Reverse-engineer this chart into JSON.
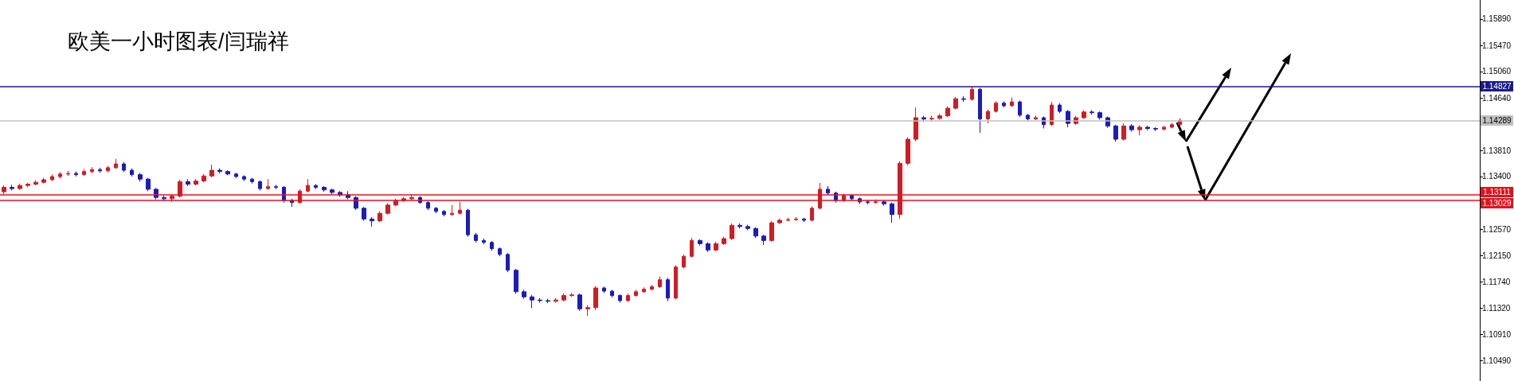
{
  "chart_data": {
    "type": "candlestick",
    "title": "欧美一小时图表/闫瑞祥",
    "categories": [
      null,
      null,
      null,
      null,
      null,
      null,
      null,
      null,
      null,
      null,
      null,
      null,
      null,
      null,
      null,
      null,
      null,
      null,
      null,
      null,
      null,
      null,
      null,
      null,
      null,
      null,
      null,
      null,
      null,
      null,
      null,
      null,
      null,
      null,
      null,
      null,
      null,
      null,
      null,
      null,
      null,
      null,
      null,
      null,
      null,
      null,
      null,
      null,
      null,
      null,
      null,
      null,
      null,
      null,
      null,
      null,
      null,
      null,
      null,
      null,
      null,
      null,
      null,
      null,
      null,
      null,
      null,
      null,
      null,
      null,
      null,
      null,
      null,
      null,
      null,
      null,
      null,
      null,
      null,
      null,
      null,
      null,
      null,
      null,
      null,
      null,
      null,
      null,
      null,
      null,
      null,
      null,
      null,
      null,
      null,
      null,
      null,
      null,
      null,
      null,
      null,
      null,
      null,
      null,
      null,
      null,
      null,
      null,
      null,
      null,
      null,
      null,
      null,
      null,
      null,
      null,
      null,
      null,
      null,
      null,
      null,
      null,
      null,
      null,
      null,
      null,
      null,
      null,
      null,
      null,
      null,
      null,
      null,
      null,
      null,
      null,
      null,
      null,
      null,
      null,
      null,
      null,
      null,
      null,
      null,
      null,
      null,
      null,
      null,
      null,
      null,
      null,
      null,
      null,
      null,
      null,
      null,
      null,
      null,
      null,
      null,
      null,
      null,
      null,
      null,
      null,
      null,
      null,
      null,
      null,
      null,
      null,
      null,
      null,
      null,
      null,
      null,
      null,
      null,
      null,
      null,
      null,
      null,
      null,
      null
    ],
    "ohlc": [
      [
        1.1316,
        1.1326,
        1.1312,
        1.1323
      ],
      [
        1.1323,
        1.1327,
        1.1318,
        1.1321
      ],
      [
        1.1321,
        1.1329,
        1.1319,
        1.1326
      ],
      [
        1.1326,
        1.133,
        1.1323,
        1.1328
      ],
      [
        1.1328,
        1.1334,
        1.1326,
        1.1331
      ],
      [
        1.1331,
        1.1338,
        1.1329,
        1.1335
      ],
      [
        1.1335,
        1.1343,
        1.1333,
        1.134
      ],
      [
        1.134,
        1.1347,
        1.1337,
        1.1344
      ],
      [
        1.1344,
        1.1349,
        1.1341,
        1.1345
      ],
      [
        1.1345,
        1.1348,
        1.134,
        1.1343
      ],
      [
        1.1343,
        1.1352,
        1.1341,
        1.1348
      ],
      [
        1.1348,
        1.1355,
        1.1345,
        1.1351
      ],
      [
        1.1351,
        1.1354,
        1.1346,
        1.1349
      ],
      [
        1.1349,
        1.1357,
        1.1347,
        1.1354
      ],
      [
        1.1354,
        1.1368,
        1.1352,
        1.136
      ],
      [
        1.136,
        1.1363,
        1.1347,
        1.135
      ],
      [
        1.135,
        1.1353,
        1.134,
        1.1343
      ],
      [
        1.1343,
        1.1346,
        1.1332,
        1.1336
      ],
      [
        1.1336,
        1.1338,
        1.1317,
        1.132
      ],
      [
        1.132,
        1.1322,
        1.1304,
        1.1307
      ],
      [
        1.1307,
        1.131,
        1.1301,
        1.1305
      ],
      [
        1.1305,
        1.1312,
        1.13,
        1.1309
      ],
      [
        1.1309,
        1.1335,
        1.1307,
        1.1332
      ],
      [
        1.1332,
        1.1336,
        1.1325,
        1.1328
      ],
      [
        1.1328,
        1.1336,
        1.1326,
        1.1333
      ],
      [
        1.1333,
        1.1344,
        1.1331,
        1.1341
      ],
      [
        1.1341,
        1.1359,
        1.1339,
        1.135
      ],
      [
        1.135,
        1.1353,
        1.1345,
        1.1348
      ],
      [
        1.1348,
        1.135,
        1.1342,
        1.1344
      ],
      [
        1.1344,
        1.1346,
        1.1338,
        1.134
      ],
      [
        1.134,
        1.1342,
        1.1333,
        1.1336
      ],
      [
        1.1336,
        1.1338,
        1.1329,
        1.1332
      ],
      [
        1.1332,
        1.1334,
        1.1318,
        1.1321
      ],
      [
        1.1321,
        1.1336,
        1.1319,
        1.1324
      ],
      [
        1.1324,
        1.1327,
        1.132,
        1.1323
      ],
      [
        1.1323,
        1.1325,
        1.1299,
        1.1302
      ],
      [
        1.1302,
        1.1305,
        1.1292,
        1.1299
      ],
      [
        1.1299,
        1.132,
        1.1297,
        1.1317
      ],
      [
        1.1317,
        1.1336,
        1.1315,
        1.1326
      ],
      [
        1.1326,
        1.1328,
        1.132,
        1.1323
      ],
      [
        1.1323,
        1.1325,
        1.1316,
        1.1319
      ],
      [
        1.1319,
        1.1321,
        1.1312,
        1.1315
      ],
      [
        1.1315,
        1.1317,
        1.1308,
        1.1311
      ],
      [
        1.1311,
        1.1317,
        1.1304,
        1.1307
      ],
      [
        1.1307,
        1.1309,
        1.1287,
        1.129
      ],
      [
        1.129,
        1.1292,
        1.127,
        1.1273
      ],
      [
        1.1273,
        1.1276,
        1.1261,
        1.127
      ],
      [
        1.127,
        1.1285,
        1.1268,
        1.1282
      ],
      [
        1.1282,
        1.1298,
        1.128,
        1.1295
      ],
      [
        1.1295,
        1.1305,
        1.1293,
        1.1302
      ],
      [
        1.1302,
        1.1308,
        1.13,
        1.1305
      ],
      [
        1.1305,
        1.1312,
        1.1303,
        1.1307
      ],
      [
        1.1307,
        1.1309,
        1.1297,
        1.1299
      ],
      [
        1.1299,
        1.1301,
        1.1287,
        1.129
      ],
      [
        1.129,
        1.1292,
        1.1282,
        1.1285
      ],
      [
        1.1285,
        1.1287,
        1.1277,
        1.128
      ],
      [
        1.128,
        1.1295,
        1.1278,
        1.1282
      ],
      [
        1.1282,
        1.13,
        1.128,
        1.1287
      ],
      [
        1.1287,
        1.1289,
        1.1245,
        1.1248
      ],
      [
        1.1248,
        1.1251,
        1.1236,
        1.1239
      ],
      [
        1.1239,
        1.1242,
        1.1233,
        1.1236
      ],
      [
        1.1236,
        1.1238,
        1.1223,
        1.1226
      ],
      [
        1.1226,
        1.1228,
        1.1214,
        1.1217
      ],
      [
        1.1217,
        1.1219,
        1.1189,
        1.1192
      ],
      [
        1.1192,
        1.1194,
        1.1155,
        1.1158
      ],
      [
        1.1158,
        1.1161,
        1.1147,
        1.115
      ],
      [
        1.115,
        1.1153,
        1.1132,
        1.1145
      ],
      [
        1.1145,
        1.1148,
        1.1141,
        1.1144
      ],
      [
        1.1144,
        1.1147,
        1.114,
        1.1143
      ],
      [
        1.1143,
        1.1148,
        1.1141,
        1.1145
      ],
      [
        1.1145,
        1.1155,
        1.1143,
        1.1152
      ],
      [
        1.1152,
        1.1156,
        1.115,
        1.1153
      ],
      [
        1.1153,
        1.1155,
        1.1128,
        1.1131
      ],
      [
        1.1131,
        1.1137,
        1.112,
        1.1133
      ],
      [
        1.1133,
        1.1167,
        1.1129,
        1.1164
      ],
      [
        1.1164,
        1.1166,
        1.1156,
        1.1159
      ],
      [
        1.1159,
        1.1161,
        1.1149,
        1.1152
      ],
      [
        1.1152,
        1.1154,
        1.1141,
        1.1144
      ],
      [
        1.1144,
        1.1155,
        1.1142,
        1.1152
      ],
      [
        1.1152,
        1.1161,
        1.115,
        1.1158
      ],
      [
        1.1158,
        1.1165,
        1.1156,
        1.1162
      ],
      [
        1.1162,
        1.1169,
        1.116,
        1.1166
      ],
      [
        1.1166,
        1.1182,
        1.1164,
        1.1177
      ],
      [
        1.1177,
        1.118,
        1.1143,
        1.1148
      ],
      [
        1.1148,
        1.12,
        1.1146,
        1.1197
      ],
      [
        1.1197,
        1.1217,
        1.1195,
        1.1214
      ],
      [
        1.1214,
        1.1243,
        1.1212,
        1.1239
      ],
      [
        1.1239,
        1.1241,
        1.1231,
        1.1234
      ],
      [
        1.1234,
        1.1236,
        1.1221,
        1.1224
      ],
      [
        1.1224,
        1.1237,
        1.1222,
        1.1234
      ],
      [
        1.1234,
        1.1245,
        1.1232,
        1.1242
      ],
      [
        1.1242,
        1.1266,
        1.124,
        1.1263
      ],
      [
        1.1263,
        1.1266,
        1.1258,
        1.1261
      ],
      [
        1.1261,
        1.1264,
        1.1255,
        1.1258
      ],
      [
        1.1258,
        1.126,
        1.1243,
        1.1246
      ],
      [
        1.1246,
        1.1248,
        1.1232,
        1.1239
      ],
      [
        1.1239,
        1.127,
        1.1237,
        1.1267
      ],
      [
        1.1267,
        1.1274,
        1.1265,
        1.1271
      ],
      [
        1.1271,
        1.1275,
        1.1269,
        1.1272
      ],
      [
        1.1272,
        1.1276,
        1.127,
        1.1273
      ],
      [
        1.1273,
        1.1275,
        1.1268,
        1.1271
      ],
      [
        1.1271,
        1.1293,
        1.1269,
        1.129
      ],
      [
        1.129,
        1.133,
        1.1288,
        1.132
      ],
      [
        1.132,
        1.1325,
        1.1311,
        1.1314
      ],
      [
        1.1314,
        1.1316,
        1.1299,
        1.1302
      ],
      [
        1.1302,
        1.1313,
        1.13,
        1.131
      ],
      [
        1.131,
        1.1312,
        1.1302,
        1.1305
      ],
      [
        1.1305,
        1.1307,
        1.1297,
        1.13
      ],
      [
        1.13,
        1.1303,
        1.1296,
        1.1299
      ],
      [
        1.1299,
        1.1304,
        1.1297,
        1.13
      ],
      [
        1.13,
        1.1302,
        1.1294,
        1.1297
      ],
      [
        1.1297,
        1.1299,
        1.1267,
        1.128
      ],
      [
        1.128,
        1.1364,
        1.1273,
        1.1361
      ],
      [
        1.1361,
        1.1402,
        1.1358,
        1.1399
      ],
      [
        1.1399,
        1.1449,
        1.1396,
        1.1433
      ],
      [
        1.1433,
        1.1436,
        1.1427,
        1.1431
      ],
      [
        1.1431,
        1.1436,
        1.1428,
        1.1432
      ],
      [
        1.1432,
        1.1439,
        1.143,
        1.1436
      ],
      [
        1.1436,
        1.1451,
        1.1434,
        1.1448
      ],
      [
        1.1448,
        1.1466,
        1.1446,
        1.1463
      ],
      [
        1.1463,
        1.1467,
        1.1458,
        1.1462
      ],
      [
        1.1462,
        1.1483,
        1.146,
        1.1478
      ],
      [
        1.1478,
        1.148,
        1.1409,
        1.1431
      ],
      [
        1.1431,
        1.1446,
        1.1424,
        1.1443
      ],
      [
        1.1443,
        1.1459,
        1.1441,
        1.1456
      ],
      [
        1.1456,
        1.1459,
        1.1449,
        1.1452
      ],
      [
        1.1452,
        1.1465,
        1.145,
        1.1458
      ],
      [
        1.1458,
        1.146,
        1.1434,
        1.1437
      ],
      [
        1.1437,
        1.1439,
        1.1428,
        1.1431
      ],
      [
        1.1431,
        1.1436,
        1.1429,
        1.1433
      ],
      [
        1.1433,
        1.1435,
        1.1416,
        1.1422
      ],
      [
        1.1422,
        1.1458,
        1.142,
        1.1453
      ],
      [
        1.1453,
        1.1456,
        1.144,
        1.1443
      ],
      [
        1.1443,
        1.1445,
        1.1418,
        1.1424
      ],
      [
        1.1424,
        1.1436,
        1.1422,
        1.1433
      ],
      [
        1.1433,
        1.1445,
        1.1431,
        1.1442
      ],
      [
        1.1442,
        1.1445,
        1.1438,
        1.1441
      ],
      [
        1.1441,
        1.1443,
        1.143,
        1.1433
      ],
      [
        1.1433,
        1.1435,
        1.1417,
        1.142
      ],
      [
        1.142,
        1.1422,
        1.1395,
        1.1399
      ],
      [
        1.1399,
        1.1424,
        1.1397,
        1.142
      ],
      [
        1.142,
        1.1423,
        1.1411,
        1.1414
      ],
      [
        1.1414,
        1.1421,
        1.1405,
        1.1418
      ],
      [
        1.1418,
        1.142,
        1.1413,
        1.1416
      ],
      [
        1.1416,
        1.1418,
        1.1412,
        1.1415
      ],
      [
        1.1415,
        1.142,
        1.1413,
        1.1418
      ],
      [
        1.1418,
        1.1425,
        1.1416,
        1.1422
      ],
      [
        1.1422,
        1.1432,
        1.142,
        1.1429
      ],
      null,
      null,
      null,
      null,
      null,
      null,
      null,
      null,
      null,
      null,
      null,
      null,
      null,
      null,
      null,
      null,
      null,
      null,
      null,
      null,
      null,
      null,
      null,
      null,
      null,
      null,
      null,
      null,
      null,
      null,
      null,
      null,
      null,
      null,
      null,
      null,
      null
    ],
    "colors": [
      "#d01c24",
      "#1c1cb8",
      "#d01c24",
      "#d01c24",
      "#d01c24",
      "#d01c24",
      "#d01c24",
      "#d01c24",
      "#d01c24",
      "#1c1cb8",
      "#d01c24",
      "#d01c24",
      "#1c1cb8",
      "#d01c24",
      "#d01c24",
      "#1c1cb8",
      "#1c1cb8",
      "#1c1cb8",
      "#1c1cb8",
      "#1c1cb8",
      "#1c1cb8",
      "#d01c24",
      "#d01c24",
      "#1c1cb8",
      "#d01c24",
      "#d01c24",
      "#d01c24",
      "#1c1cb8",
      "#1c1cb8",
      "#1c1cb8",
      "#1c1cb8",
      "#1c1cb8",
      "#1c1cb8",
      "#d01c24",
      "#1c1cb8",
      "#1c1cb8",
      "#1c1cb8",
      "#d01c24",
      "#d01c24",
      "#1c1cb8",
      "#1c1cb8",
      "#1c1cb8",
      "#1c1cb8",
      "#1c1cb8",
      "#1c1cb8",
      "#1c1cb8",
      "#1c1cb8",
      "#d01c24",
      "#d01c24",
      "#d01c24",
      "#d01c24",
      "#d01c24",
      "#1c1cb8",
      "#1c1cb8",
      "#1c1cb8",
      "#1c1cb8",
      "#d01c24",
      "#d01c24",
      "#1c1cb8",
      "#1c1cb8",
      "#1c1cb8",
      "#1c1cb8",
      "#1c1cb8",
      "#1c1cb8",
      "#1c1cb8",
      "#1c1cb8",
      "#1c1cb8",
      "#1c1cb8",
      "#1c1cb8",
      "#d01c24",
      "#d01c24",
      "#d01c24",
      "#1c1cb8",
      "#d01c24",
      "#d01c24",
      "#1c1cb8",
      "#1c1cb8",
      "#1c1cb8",
      "#d01c24",
      "#d01c24",
      "#d01c24",
      "#d01c24",
      "#d01c24",
      "#1c1cb8",
      "#d01c24",
      "#d01c24",
      "#d01c24",
      "#1c1cb8",
      "#1c1cb8",
      "#d01c24",
      "#d01c24",
      "#d01c24",
      "#1c1cb8",
      "#1c1cb8",
      "#1c1cb8",
      "#1c1cb8",
      "#d01c24",
      "#d01c24",
      "#d01c24",
      "#d01c24",
      "#1c1cb8",
      "#d01c24",
      "#d01c24",
      "#1c1cb8",
      "#1c1cb8",
      "#d01c24",
      "#1c1cb8",
      "#1c1cb8",
      "#1c1cb8",
      "#d01c24",
      "#1c1cb8",
      "#1c1cb8",
      "#d01c24",
      "#d01c24",
      "#d01c24",
      "#1c1cb8",
      "#d01c24",
      "#d01c24",
      "#d01c24",
      "#d01c24",
      "#1c1cb8",
      "#d01c24",
      "#1c1cb8",
      "#d01c24",
      "#d01c24",
      "#1c1cb8",
      "#d01c24",
      "#1c1cb8",
      "#1c1cb8",
      "#d01c24",
      "#1c1cb8",
      "#d01c24",
      "#1c1cb8",
      "#1c1cb8",
      "#d01c24",
      "#d01c24",
      "#1c1cb8",
      "#1c1cb8",
      "#1c1cb8",
      "#1c1cb8",
      "#d01c24",
      "#1c1cb8",
      "#d01c24",
      "#1c1cb8",
      "#1c1cb8",
      "#d01c24",
      "#d01c24",
      "#d01c24",
      null,
      null,
      null,
      null,
      null,
      null,
      null,
      null,
      null,
      null,
      null,
      null,
      null,
      null,
      null,
      null,
      null,
      null,
      null,
      null,
      null,
      null,
      null,
      null,
      null,
      null,
      null,
      null,
      null,
      null,
      null,
      null,
      null,
      null,
      null,
      null,
      null
    ],
    "ylim": [
      1.1017,
      1.1619
    ],
    "yticks": [
      {
        "value": 1.1589,
        "label": "1.15890"
      },
      {
        "value": 1.1547,
        "label": "1.15470"
      },
      {
        "value": 1.1506,
        "label": "1.15060"
      },
      {
        "value": 1.1464,
        "label": "1.14640"
      },
      {
        "value": 1.1423,
        "label": null
      },
      {
        "value": 1.1381,
        "label": "1.13810"
      },
      {
        "value": 1.134,
        "label": "1.13400"
      },
      {
        "value": 1.1298,
        "label": null
      },
      {
        "value": 1.1257,
        "label": "1.12570"
      },
      {
        "value": 1.1215,
        "label": "1.12150"
      },
      {
        "value": 1.1174,
        "label": "1.11740"
      },
      {
        "value": 1.1132,
        "label": "1.11320"
      },
      {
        "value": 1.1091,
        "label": "1.10910"
      },
      {
        "value": 1.1049,
        "label": "1.10490"
      }
    ],
    "ref_lines": [
      {
        "axis": "y",
        "value": 1.14827,
        "label": "1.14827",
        "color": "#1a1a8c"
      },
      {
        "axis": "y",
        "value": 1.14289,
        "label": "1.14289",
        "color": "#c0c0c0"
      },
      {
        "axis": "y",
        "value": 1.13111,
        "label": "1.13111",
        "color": "#e0141c"
      },
      {
        "axis": "y",
        "value": 1.13029,
        "label": "1.13029",
        "color": "#e0141c"
      }
    ],
    "tick_labels": "y"
  }
}
